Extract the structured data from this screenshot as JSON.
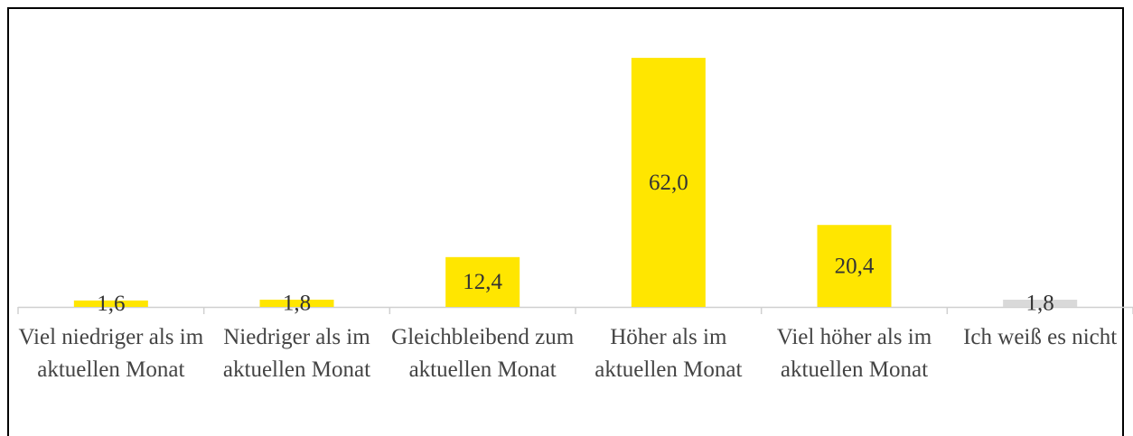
{
  "chart_data": {
    "type": "bar",
    "categories": [
      "Viel niedriger als im aktuellen Monat",
      "Niedriger als im aktuellen Monat",
      "Gleichbleibend zum aktuellen Monat",
      "Höher als im aktuellen Monat",
      "Viel höher als im aktuellen Monat",
      "Ich weiß es nicht"
    ],
    "values": [
      1.6,
      1.8,
      12.4,
      62.0,
      20.4,
      1.8
    ],
    "value_labels": [
      "1,6",
      "1,8",
      "12,4",
      "62,0",
      "20,4",
      "1,8"
    ],
    "colors": [
      "#ffe600",
      "#ffe600",
      "#ffe600",
      "#ffe600",
      "#ffe600",
      "#d9d9d9"
    ]
  }
}
